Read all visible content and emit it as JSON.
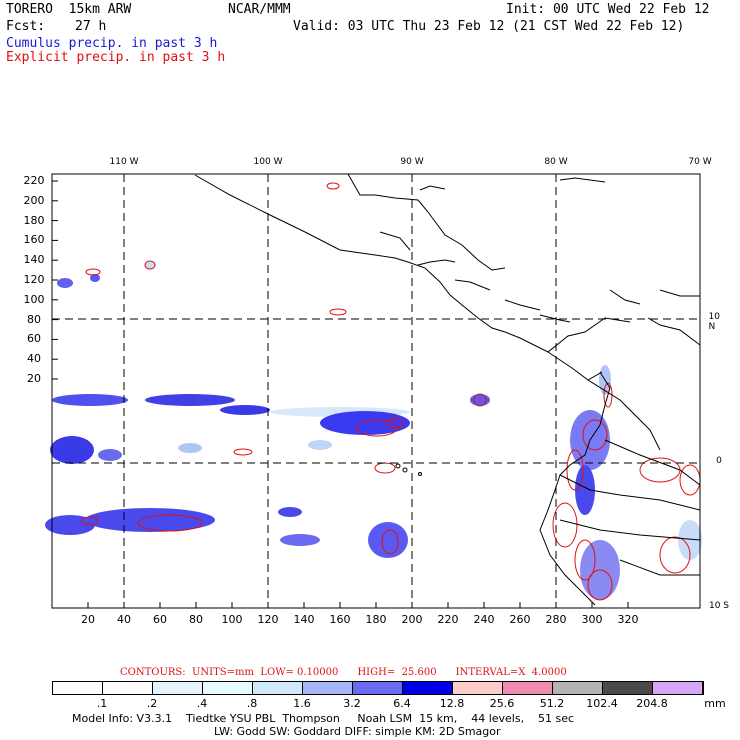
{
  "header": {
    "model": "TORERO  15km ARW",
    "org": "NCAR/MMM",
    "init": "Init: 00 UTC Wed 22 Feb 12",
    "fcst_label": "Fcst:",
    "fcst_value": "27 h",
    "valid": "Valid: 03 UTC Thu 23 Feb 12 (21 CST Wed 22 Feb 12)",
    "cumulus": "Cumulus precip. in past 3 h",
    "explicit": "Explicit precip. in past 3 h"
  },
  "map": {
    "top_lon_labels": [
      "110 W",
      "100 W",
      "90 W",
      "80 W",
      "70 W"
    ],
    "right_lat_labels": [
      "10 N",
      "0",
      "10 S"
    ],
    "y_ticks": [
      "220",
      "200",
      "180",
      "160",
      "140",
      "120",
      "100",
      "80",
      "60",
      "40",
      "20"
    ],
    "x_ticks": [
      "20",
      "40",
      "60",
      "80",
      "100",
      "120",
      "140",
      "160",
      "180",
      "200",
      "220",
      "240",
      "260",
      "280",
      "300",
      "320"
    ],
    "colors": {
      "blue_precip": "#2a2ae0",
      "light_blue": "#bcd6f5",
      "red_contour": "#e01010",
      "grid": "#000000"
    }
  },
  "contours": {
    "text": "CONTOURS:  UNITS=mm  LOW= 0.10000      HIGH=  25.600      INTERVAL=X  4.0000"
  },
  "colorbar": {
    "labels": [
      ".1",
      ".2",
      ".4",
      ".8",
      "1.6",
      "3.2",
      "6.4",
      "12.8",
      "25.6",
      "51.2",
      "102.4",
      "204.8"
    ],
    "units": "mm",
    "colors": [
      "#ffffff",
      "#ffffff",
      "#e6f4ff",
      "#e8fbff",
      "#cfe8fb",
      "#a6b6f6",
      "#6b6bf0",
      "#0000e6",
      "#ffcccc",
      "#f08ab0",
      "#b4b4b4",
      "#4a4a4a",
      "#d8a8f8"
    ]
  },
  "footer": {
    "line1": "Model Info: V3.3.1    Tiedtke YSU PBL  Thompson     Noah LSM  15 km,    44 levels,    51 sec",
    "line2": "LW: Godd SW: Goddard DIFF: simple KM: 2D Smagor"
  }
}
